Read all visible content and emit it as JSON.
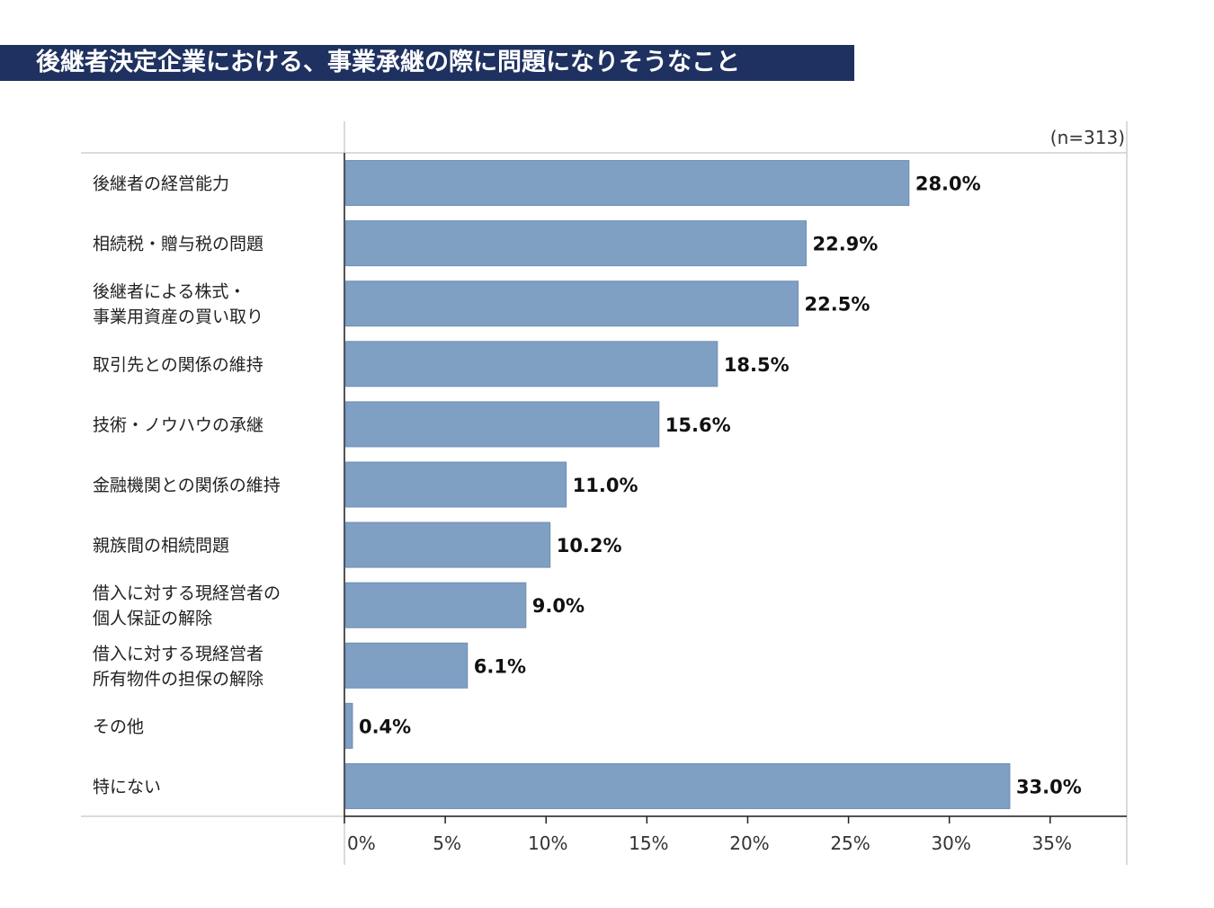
{
  "title": "後継者決定企業における、事業承継の際に問題になりそうなこと",
  "chart_data": {
    "type": "bar",
    "orientation": "horizontal",
    "sample_note": "(n=313)",
    "categories": [
      [
        "後継者の経営能力"
      ],
      [
        "相続税・贈与税の問題"
      ],
      [
        "後継者による株式・",
        "事業用資産の買い取り"
      ],
      [
        "取引先との関係の維持"
      ],
      [
        "技術・ノウハウの承継"
      ],
      [
        "金融機関との関係の維持"
      ],
      [
        "親族間の相続問題"
      ],
      [
        "借入に対する現経営者の",
        "個人保証の解除"
      ],
      [
        "借入に対する現経営者",
        "所有物件の担保の解除"
      ],
      [
        "その他"
      ],
      [
        "特にない"
      ]
    ],
    "values": [
      28.0,
      22.9,
      22.5,
      18.5,
      15.6,
      11.0,
      10.2,
      9.0,
      6.1,
      0.4,
      33.0
    ],
    "value_labels": [
      "28.0%",
      "22.9%",
      "22.5%",
      "18.5%",
      "15.6%",
      "11.0%",
      "10.2%",
      "9.0%",
      "6.1%",
      "0.4%",
      "33.0%"
    ],
    "xlim": [
      0,
      38.8
    ],
    "xticks": [
      0,
      5,
      10,
      15,
      20,
      25,
      30,
      35
    ],
    "xtick_labels": [
      "0%",
      "5%",
      "10%",
      "15%",
      "20%",
      "25%",
      "30%",
      "35%"
    ],
    "bar_color": "#7f9fc3",
    "bar_edge_color": "#6f8fb5",
    "grid": false,
    "legend": "none"
  }
}
